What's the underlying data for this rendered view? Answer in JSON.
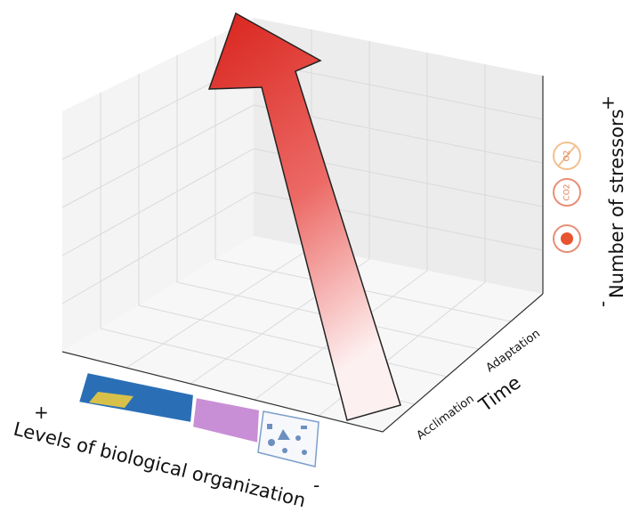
{
  "organization_axis": {
    "label": "Levels of biological organization",
    "plus": "+",
    "minus": "-"
  },
  "time_axis": {
    "label": "Time",
    "ticks": [
      "Acclimation",
      "Adaptation"
    ]
  },
  "stressors_axis": {
    "label": "Number of stressors",
    "plus": "+",
    "minus": "-",
    "icons": [
      "O2",
      "CO2"
    ]
  }
}
